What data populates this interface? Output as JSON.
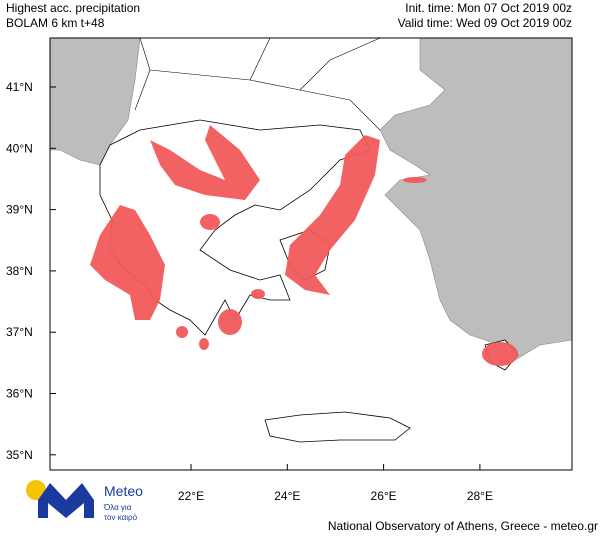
{
  "header": {
    "left": [
      "Highest acc. precipitation",
      "BOLAM 6 km t+48"
    ],
    "right": [
      "Init. time: Mon 07 Oct 2019 00z",
      "Valid time: Wed 09 Oct 2019 00z"
    ]
  },
  "map": {
    "lat_labels": [
      "41°N",
      "40°N",
      "39°N",
      "38°N",
      "37°N",
      "36°N",
      "35°N"
    ],
    "lon_labels": [
      "22°E",
      "24°E",
      "26°E",
      "28°E"
    ]
  },
  "logo": {
    "name": "Meteo",
    "tagline": [
      "Όλα για",
      "τον καιρό"
    ]
  },
  "footer": "National Observatory of Athens, Greece - meteo.gr"
}
